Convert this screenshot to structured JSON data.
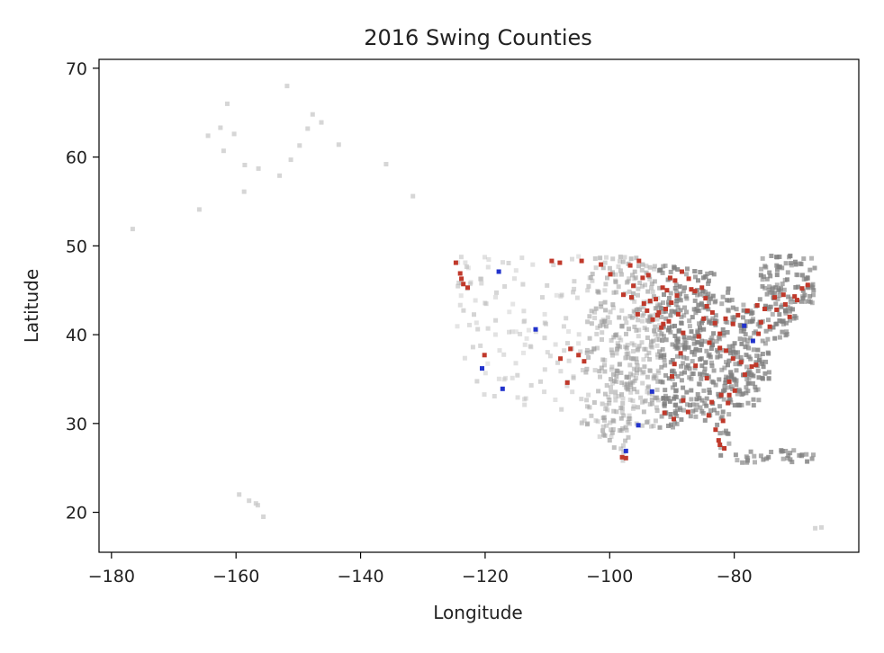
{
  "chart_data": {
    "type": "scatter",
    "title": "2016 Swing Counties",
    "xlabel": "Longitude",
    "ylabel": "Latitude",
    "xlim": [
      -182,
      -60
    ],
    "ylim": [
      15.5,
      71
    ],
    "xticks": [
      -180,
      -160,
      -140,
      -120,
      -100,
      -80
    ],
    "yticks": [
      20,
      30,
      40,
      50,
      60,
      70
    ],
    "grid": false,
    "colors": {
      "other": "#c8c8c8",
      "dense": "#7f7f7f",
      "flipped_red": "#c0392b",
      "flipped_blue": "#2233cc"
    },
    "series": [
      {
        "key": "other",
        "points": [
          [
            -161.4,
            66
          ],
          [
            -151.8,
            68
          ],
          [
            -147.7,
            64.8
          ],
          [
            -146.3,
            63.9
          ],
          [
            -148.5,
            63.2
          ],
          [
            -149.8,
            61.3
          ],
          [
            -143.5,
            61.4
          ],
          [
            -162.5,
            63.3
          ],
          [
            -164.5,
            62.4
          ],
          [
            -160.3,
            62.6
          ],
          [
            -162,
            60.7
          ],
          [
            -158.6,
            59.1
          ],
          [
            -156.4,
            58.7
          ],
          [
            -158.7,
            56.1
          ],
          [
            -153,
            57.9
          ],
          [
            -151.2,
            59.7
          ],
          [
            -135.9,
            59.2
          ],
          [
            -131.6,
            55.6
          ],
          [
            -165.9,
            54.1
          ],
          [
            -176.6,
            51.9
          ],
          [
            -159.5,
            22
          ],
          [
            -157.9,
            21.3
          ],
          [
            -156.8,
            21
          ],
          [
            -156.5,
            20.8
          ],
          [
            -155.6,
            19.5
          ],
          [
            -66,
            18.3
          ],
          [
            -67,
            18.2
          ]
        ]
      },
      {
        "key": "flipped_red",
        "points": [
          [
            -124.7,
            48.1
          ],
          [
            -124,
            46.9
          ],
          [
            -123.8,
            46.3
          ],
          [
            -123.5,
            45.7
          ],
          [
            -122.8,
            45.3
          ],
          [
            -120.1,
            37.7
          ],
          [
            -107.9,
            37.3
          ],
          [
            -106.3,
            38.4
          ],
          [
            -106.8,
            34.6
          ],
          [
            -104.1,
            37
          ],
          [
            -105,
            37.7
          ],
          [
            -98,
            26.2
          ],
          [
            -97.4,
            26.1
          ],
          [
            -109.3,
            48.3
          ],
          [
            -108,
            48.1
          ],
          [
            -104.5,
            48.3
          ],
          [
            -101.4,
            47.9
          ],
          [
            -99.9,
            46.8
          ],
          [
            -96.7,
            47.8
          ],
          [
            -95.3,
            48.3
          ],
          [
            -94.7,
            46.4
          ],
          [
            -96.2,
            45.5
          ],
          [
            -97.8,
            44.5
          ],
          [
            -96.5,
            44.2
          ],
          [
            -93.5,
            43.8
          ],
          [
            -94.5,
            43.5
          ],
          [
            -92.6,
            44
          ],
          [
            -91.5,
            45.3
          ],
          [
            -93.8,
            46.7
          ],
          [
            -89.5,
            46.1
          ],
          [
            -90.8,
            45
          ],
          [
            -89.2,
            44.4
          ],
          [
            -90.1,
            43.6
          ],
          [
            -91,
            42.9
          ],
          [
            -92.3,
            42.2
          ],
          [
            -93.1,
            41.7
          ],
          [
            -91.4,
            41.2
          ],
          [
            -94,
            42.7
          ],
          [
            -95.5,
            42.3
          ],
          [
            -92.1,
            42.5
          ],
          [
            -91.7,
            40.8
          ],
          [
            -90.5,
            41.5
          ],
          [
            -89,
            42.3
          ],
          [
            -88.2,
            40.2
          ],
          [
            -87.3,
            46.3
          ],
          [
            -86.3,
            44.9
          ],
          [
            -85.2,
            45.3
          ],
          [
            -84.4,
            43.2
          ],
          [
            -83.5,
            42.5
          ],
          [
            -84.9,
            41.8
          ],
          [
            -83.1,
            41.3
          ],
          [
            -81.4,
            41.8
          ],
          [
            -80.2,
            41.2
          ],
          [
            -79.4,
            42.2
          ],
          [
            -77.9,
            42.7
          ],
          [
            -76.3,
            43.3
          ],
          [
            -75.1,
            42.9
          ],
          [
            -75.7,
            41.4
          ],
          [
            -74.3,
            40.9
          ],
          [
            -76.1,
            40.1
          ],
          [
            -73.2,
            42.8
          ],
          [
            -71.8,
            43.4
          ],
          [
            -70.3,
            44.3
          ],
          [
            -69.1,
            45.2
          ],
          [
            -68.2,
            45.6
          ],
          [
            -72.1,
            44.5
          ],
          [
            -69.9,
            43.9
          ],
          [
            -71.1,
            42
          ],
          [
            -73.5,
            44.2
          ],
          [
            -82.3,
            40.1
          ],
          [
            -85.7,
            39.8
          ],
          [
            -88.6,
            37.9
          ],
          [
            -86.2,
            36.5
          ],
          [
            -84.4,
            35.1
          ],
          [
            -89.6,
            36.7
          ],
          [
            -90,
            35.3
          ],
          [
            -83.6,
            32.4
          ],
          [
            -84.1,
            30.9
          ],
          [
            -82.1,
            33.2
          ],
          [
            -81,
            32.3
          ],
          [
            -79.9,
            33.7
          ],
          [
            -80.8,
            34.7
          ],
          [
            -78.3,
            35.5
          ],
          [
            -77.2,
            36.4
          ],
          [
            -76.5,
            36.6
          ],
          [
            -78.9,
            36.9
          ],
          [
            -80.2,
            37.3
          ],
          [
            -81.3,
            38.2
          ],
          [
            -82.3,
            38.5
          ],
          [
            -84,
            39.1
          ],
          [
            -87.4,
            31.3
          ],
          [
            -88.2,
            32.6
          ],
          [
            -89.7,
            30.5
          ],
          [
            -91.2,
            31.2
          ],
          [
            -83,
            29.3
          ],
          [
            -82.5,
            28.1
          ],
          [
            -82.3,
            27.6
          ],
          [
            -81.6,
            27.2
          ],
          [
            -80.8,
            33.2
          ],
          [
            -81.8,
            30.3
          ],
          [
            -84.6,
            44.1
          ],
          [
            -86.9,
            45.1
          ],
          [
            -90.3,
            46.4
          ],
          [
            -88.4,
            47.1
          ]
        ]
      },
      {
        "key": "flipped_blue",
        "points": [
          [
            -117.8,
            47.1
          ],
          [
            -111.9,
            40.6
          ],
          [
            -120.5,
            36.2
          ],
          [
            -117.2,
            33.9
          ],
          [
            -93.2,
            33.6
          ],
          [
            -95.4,
            29.8
          ],
          [
            -97.4,
            26.9
          ],
          [
            -78.4,
            41
          ],
          [
            -77,
            39.3
          ]
        ]
      }
    ]
  }
}
